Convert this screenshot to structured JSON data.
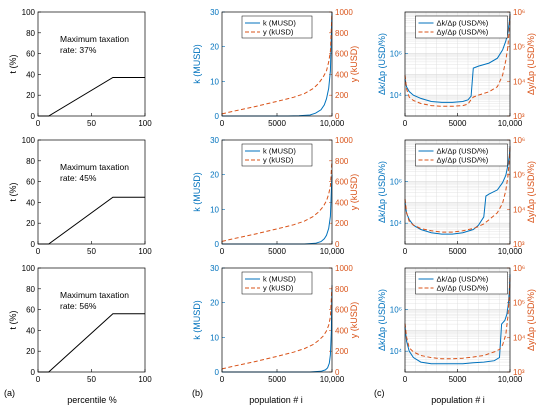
{
  "colors": {
    "blue": "#0072bd",
    "orange": "#d95319",
    "black": "#000000",
    "grid": "#d9d9d9"
  },
  "panel_labels": [
    "(a)",
    "(b)",
    "(c)"
  ],
  "x_axis_labels": {
    "a": "percentile %",
    "b": "population # i",
    "c": "population # i"
  },
  "chart_data": [
    {
      "id": "a1",
      "type": "line",
      "annotation": [
        "Maximum taxation",
        "rate: 37%"
      ],
      "ylabel": "t (%)",
      "xlabel": "",
      "xlim": [
        0,
        100
      ],
      "ylim": [
        0,
        100
      ],
      "xticks": [
        "0",
        "50",
        "100"
      ],
      "yticks": [
        "0",
        "20",
        "40",
        "60",
        "80",
        "100"
      ],
      "series": [
        {
          "x": [
            0,
            10,
            70,
            100
          ],
          "y": [
            0,
            0,
            37,
            37
          ]
        }
      ]
    },
    {
      "id": "a2",
      "type": "line",
      "annotation": [
        "Maximum taxation",
        "rate: 45%"
      ],
      "ylabel": "t (%)",
      "xlabel": "",
      "xlim": [
        0,
        100
      ],
      "ylim": [
        0,
        100
      ],
      "xticks": [
        "0",
        "50",
        "100"
      ],
      "yticks": [
        "0",
        "20",
        "40",
        "60",
        "80",
        "100"
      ],
      "series": [
        {
          "x": [
            0,
            10,
            70,
            100
          ],
          "y": [
            0,
            0,
            45,
            45
          ]
        }
      ]
    },
    {
      "id": "a3",
      "type": "line",
      "annotation": [
        "Maximum taxation",
        "rate: 56%"
      ],
      "ylabel": "t (%)",
      "xlabel": "percentile %",
      "xlim": [
        0,
        100
      ],
      "ylim": [
        0,
        100
      ],
      "xticks": [
        "0",
        "50",
        "100"
      ],
      "yticks": [
        "0",
        "20",
        "40",
        "60",
        "80",
        "100"
      ],
      "series": [
        {
          "x": [
            0,
            10,
            70,
            100
          ],
          "y": [
            0,
            0,
            56,
            56
          ]
        }
      ]
    },
    {
      "id": "b1",
      "type": "line",
      "legend": "top-center",
      "ylabel": "k (MUSD)",
      "ylabel_right": "y (kUSD)",
      "xlabel": "",
      "xlim": [
        0,
        10000
      ],
      "ylim": [
        0,
        30
      ],
      "ylim_right": [
        0,
        1000
      ],
      "xticks": [
        "0",
        "5000",
        "10,000"
      ],
      "yticks": [
        "0",
        "10",
        "20",
        "30"
      ],
      "yticks_right": [
        "0",
        "200",
        "400",
        "600",
        "800",
        "1000"
      ],
      "series": [
        {
          "name": "k (MUSD)",
          "axis": "left",
          "x": [
            0,
            2000,
            4000,
            6000,
            7000,
            8000,
            8500,
            9000,
            9300,
            9500,
            9700,
            9850,
            10000
          ],
          "y": [
            0,
            0,
            0,
            0,
            0.1,
            0.3,
            0.8,
            1.8,
            3.2,
            5,
            8,
            13,
            30
          ]
        },
        {
          "name": "y (kUSD)",
          "axis": "right",
          "x": [
            0,
            1000,
            3000,
            5000,
            6500,
            7500,
            8300,
            8800,
            9200,
            9500,
            9700,
            9850,
            10000
          ],
          "y": [
            20,
            45,
            90,
            140,
            180,
            215,
            265,
            315,
            375,
            435,
            520,
            620,
            1000
          ]
        }
      ]
    },
    {
      "id": "b2",
      "type": "line",
      "legend": "top-center",
      "ylabel": "k (MUSD)",
      "ylabel_right": "y (kUSD)",
      "xlabel": "",
      "xlim": [
        0,
        10000
      ],
      "ylim": [
        0,
        30
      ],
      "ylim_right": [
        0,
        1000
      ],
      "xticks": [
        "0",
        "5000",
        "10,000"
      ],
      "yticks": [
        "0",
        "10",
        "20",
        "30"
      ],
      "yticks_right": [
        "0",
        "200",
        "400",
        "600",
        "800",
        "1000"
      ],
      "series": [
        {
          "name": "k (MUSD)",
          "axis": "left",
          "x": [
            0,
            2000,
            4000,
            6000,
            7500,
            8500,
            9000,
            9300,
            9500,
            9700,
            9850,
            10000
          ],
          "y": [
            0,
            0,
            0,
            0,
            0,
            0.2,
            0.7,
            1.5,
            2.5,
            4.5,
            8,
            20
          ]
        },
        {
          "name": "y (kUSD)",
          "axis": "right",
          "x": [
            0,
            1000,
            3000,
            5000,
            6500,
            7500,
            8300,
            8800,
            9200,
            9500,
            9700,
            9850,
            10000
          ],
          "y": [
            25,
            50,
            95,
            145,
            185,
            220,
            265,
            310,
            360,
            415,
            480,
            560,
            800
          ]
        }
      ]
    },
    {
      "id": "b3",
      "type": "line",
      "legend": "top-center",
      "ylabel": "k (MUSD)",
      "ylabel_right": "y (kUSD)",
      "xlabel": "population # i",
      "xlim": [
        0,
        10000
      ],
      "ylim": [
        0,
        30
      ],
      "ylim_right": [
        0,
        1000
      ],
      "xticks": [
        "0",
        "5000",
        "10,000"
      ],
      "yticks": [
        "0",
        "10",
        "20",
        "30"
      ],
      "yticks_right": [
        "0",
        "200",
        "400",
        "600",
        "800",
        "1000"
      ],
      "series": [
        {
          "name": "k (MUSD)",
          "axis": "left",
          "x": [
            0,
            2000,
            4000,
            6000,
            8000,
            9000,
            9400,
            9600,
            9750,
            9850,
            9950,
            10000
          ],
          "y": [
            0,
            0,
            0,
            0,
            0,
            0.2,
            0.6,
            1.2,
            2.5,
            5,
            12,
            25
          ]
        },
        {
          "name": "y (kUSD)",
          "axis": "right",
          "x": [
            0,
            1000,
            3000,
            5000,
            6500,
            7500,
            8300,
            8800,
            9200,
            9500,
            9700,
            9850,
            10000
          ],
          "y": [
            30,
            55,
            100,
            150,
            190,
            225,
            265,
            305,
            345,
            395,
            450,
            530,
            820
          ]
        }
      ]
    },
    {
      "id": "c1",
      "type": "line",
      "legend": "top-center",
      "scale": "log",
      "ylabel": "Δk/Δp (USD/%)",
      "ylabel_right": "Δy/Δp (USD/%)",
      "xlabel": "",
      "xlim": [
        0,
        10000
      ],
      "ylim": [
        1000,
        100000000
      ],
      "ylim_right": [
        1000,
        1000000
      ],
      "xticks": [
        "0",
        "5000",
        "10,000"
      ],
      "yticks": [
        "10⁴",
        "10⁶"
      ],
      "yticks_right": [
        "10³",
        "10⁴",
        "10⁵",
        "10⁶"
      ],
      "series": [
        {
          "name": "Δk/Δp (USD/%)",
          "axis": "left",
          "x": [
            0,
            150,
            400,
            800,
            1500,
            2500,
            3500,
            4500,
            5500,
            6000,
            6300,
            6500,
            7000,
            8000,
            8800,
            9300,
            9600,
            9800,
            9950,
            10000
          ],
          "y": [
            60000,
            25000,
            15000,
            10000,
            7000,
            5000,
            4500,
            4500,
            5000,
            6000,
            9000,
            200000,
            250000,
            350000,
            600000,
            1500000,
            4000000,
            10000000,
            40000000,
            80000000
          ]
        },
        {
          "name": "Δy/Δp (USD/%)",
          "axis": "right",
          "x": [
            0,
            150,
            400,
            800,
            1500,
            2500,
            3500,
            4500,
            5500,
            6000,
            6300,
            6500,
            7000,
            8000,
            8800,
            9300,
            9600,
            9800,
            9950,
            10000
          ],
          "y": [
            15000,
            6000,
            3500,
            2800,
            2300,
            2000,
            1900,
            1900,
            2000,
            2200,
            3000,
            3500,
            4000,
            5000,
            7000,
            15000,
            40000,
            100000,
            400000,
            800000
          ]
        }
      ]
    },
    {
      "id": "c2",
      "type": "line",
      "legend": "top-center",
      "scale": "log",
      "ylabel": "Δk/Δp (USD/%)",
      "ylabel_right": "Δy/Δp (USD/%)",
      "xlabel": "",
      "xlim": [
        0,
        10000
      ],
      "ylim": [
        1000,
        100000000
      ],
      "ylim_right": [
        1000,
        1000000
      ],
      "xticks": [
        "0",
        "5000",
        "10,000"
      ],
      "yticks": [
        "10⁴",
        "10⁶"
      ],
      "yticks_right": [
        "10³",
        "10⁴",
        "10⁵",
        "10⁶"
      ],
      "series": [
        {
          "name": "Δk/Δp (USD/%)",
          "axis": "left",
          "x": [
            0,
            150,
            400,
            800,
            1500,
            2500,
            3500,
            4500,
            5500,
            6500,
            7000,
            7500,
            7700,
            8000,
            8800,
            9300,
            9600,
            9800,
            9950,
            10000
          ],
          "y": [
            100000,
            30000,
            15000,
            8000,
            5000,
            3500,
            3000,
            3000,
            3500,
            5000,
            8000,
            20000,
            200000,
            250000,
            400000,
            900000,
            2000000,
            6000000,
            20000000,
            50000000
          ]
        },
        {
          "name": "Δy/Δp (USD/%)",
          "axis": "right",
          "x": [
            0,
            150,
            400,
            800,
            1500,
            2500,
            3500,
            4500,
            5500,
            6500,
            7000,
            7500,
            8000,
            8800,
            9300,
            9600,
            9800,
            9950,
            10000
          ],
          "y": [
            20000,
            8000,
            4500,
            3500,
            2800,
            2400,
            2200,
            2200,
            2400,
            2800,
            3200,
            3800,
            5000,
            8000,
            15000,
            35000,
            90000,
            300000,
            700000
          ]
        }
      ]
    },
    {
      "id": "c3",
      "type": "line",
      "legend": "top-center",
      "scale": "log",
      "ylabel": "Δk/Δp (USD/%)",
      "ylabel_right": "Δy/Δp (USD/%)",
      "xlabel": "population # i",
      "xlim": [
        0,
        10000
      ],
      "ylim": [
        1000,
        100000000
      ],
      "ylim_right": [
        1000,
        1000000
      ],
      "xticks": [
        "0",
        "5000",
        "10,000"
      ],
      "yticks": [
        "10⁴",
        "10⁶"
      ],
      "yticks_right": [
        "10³",
        "10⁴",
        "10⁵",
        "10⁶"
      ],
      "series": [
        {
          "name": "Δk/Δp (USD/%)",
          "axis": "left",
          "x": [
            0,
            150,
            400,
            800,
            1500,
            2500,
            3500,
            4500,
            5500,
            6500,
            7500,
            8500,
            9000,
            9200,
            9500,
            9700,
            9850,
            9950,
            10000
          ],
          "y": [
            150000,
            30000,
            10000,
            5000,
            3000,
            2500,
            2500,
            2500,
            2500,
            2800,
            3000,
            3500,
            5000,
            200000,
            300000,
            600000,
            2000000,
            10000000,
            50000000
          ]
        },
        {
          "name": "Δy/Δp (USD/%)",
          "axis": "right",
          "x": [
            0,
            150,
            400,
            800,
            1500,
            2500,
            3500,
            4500,
            5500,
            6500,
            7500,
            8500,
            9000,
            9300,
            9600,
            9800,
            9950,
            10000
          ],
          "y": [
            25000,
            10000,
            5000,
            3800,
            3000,
            2600,
            2400,
            2400,
            2500,
            2700,
            3000,
            3800,
            4500,
            6000,
            12000,
            40000,
            200000,
            600000
          ]
        }
      ]
    }
  ]
}
